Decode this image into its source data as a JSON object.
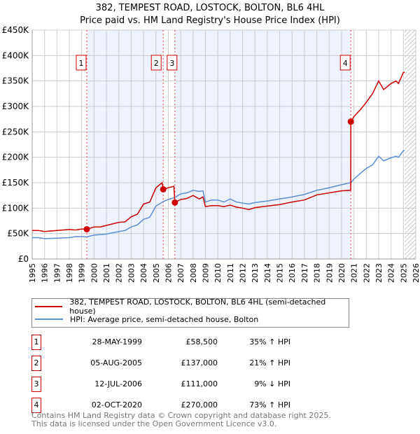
{
  "title": "382, TEMPEST ROAD, LOSTOCK, BOLTON, BL6 4HL",
  "subtitle": "Price paid vs. HM Land Registry's House Price Index (HPI)",
  "legend": {
    "property": "382, TEMPEST ROAD, LOSTOCK, BOLTON, BL6 4HL (semi-detached house)",
    "hpi": "HPI: Average price, semi-detached house, Bolton"
  },
  "sales": [
    {
      "num": "1",
      "date": "28-MAY-1999",
      "price": "£58,500",
      "hpi": "35% ↑ HPI",
      "x": 1999.41,
      "y": 58500
    },
    {
      "num": "2",
      "date": "05-AUG-2005",
      "price": "£137,000",
      "hpi": "21% ↑ HPI",
      "x": 2005.59,
      "y": 137000
    },
    {
      "num": "3",
      "date": "12-JUL-2006",
      "price": "£111,000",
      "hpi": "9% ↓ HPI",
      "x": 2006.53,
      "y": 111000
    },
    {
      "num": "4",
      "date": "02-OCT-2020",
      "price": "£270,000",
      "hpi": "73% ↑ HPI",
      "x": 2020.75,
      "y": 270000
    }
  ],
  "footer": {
    "line1": "Contains HM Land Registry data © Crown copyright and database right 2025.",
    "line2": "This data is licensed under the Open Government Licence v3.0."
  },
  "colors": {
    "property": "#cc0000",
    "hpi": "#5b8fd4",
    "shade": "#eef2fc"
  },
  "chart_data": {
    "type": "line",
    "title": "382, TEMPEST ROAD, LOSTOCK, BOLTON, BL6 4HL",
    "xlim": [
      1995,
      2026
    ],
    "ylim": [
      0,
      450000
    ],
    "xticks": [
      "1995",
      "1996",
      "1997",
      "1998",
      "1999",
      "2000",
      "2001",
      "2002",
      "2003",
      "2004",
      "2005",
      "2006",
      "2007",
      "2008",
      "2009",
      "2010",
      "2011",
      "2012",
      "2013",
      "2014",
      "2015",
      "2016",
      "2017",
      "2018",
      "2019",
      "2020",
      "2021",
      "2022",
      "2023",
      "2024",
      "2025",
      "2026"
    ],
    "yticks": [
      {
        "v": 0,
        "l": "£0"
      },
      {
        "v": 50000,
        "l": "£50K"
      },
      {
        "v": 100000,
        "l": "£100K"
      },
      {
        "v": 150000,
        "l": "£150K"
      },
      {
        "v": 200000,
        "l": "£200K"
      },
      {
        "v": 250000,
        "l": "£250K"
      },
      {
        "v": 300000,
        "l": "£300K"
      },
      {
        "v": 350000,
        "l": "£350K"
      },
      {
        "v": 400000,
        "l": "£400K"
      },
      {
        "v": 450000,
        "l": "£450K"
      }
    ],
    "series": [
      {
        "name": "382, TEMPEST ROAD, LOSTOCK, BOLTON, BL6 4HL (semi-detached house)",
        "x": [
          1995,
          1995.5,
          1996,
          1997,
          1998,
          1998.5,
          1999,
          1999.41,
          2000,
          2000.5,
          2001,
          2002,
          2002.5,
          2003,
          2003.5,
          2004,
          2004.5,
          2005,
          2005.5,
          2005.59,
          2006,
          2006.45,
          2006.53,
          2007,
          2007.5,
          2008,
          2008.5,
          2008.8,
          2009,
          2009.5,
          2010,
          2010.5,
          2011,
          2011.5,
          2012,
          2012.5,
          2013,
          2014,
          2015,
          2016,
          2017,
          2018,
          2019,
          2020,
          2020.74,
          2020.75,
          2021,
          2021.5,
          2022,
          2022.5,
          2023,
          2023.4,
          2024,
          2024.4,
          2024.6,
          2025,
          2025.1
        ],
        "values": [
          56000,
          56000,
          54000,
          56000,
          58000,
          57000,
          59000,
          58500,
          63000,
          63000,
          66000,
          72000,
          73000,
          83000,
          88000,
          108000,
          112000,
          140000,
          150000,
          137000,
          140000,
          143000,
          111000,
          117000,
          119000,
          125000,
          118000,
          122000,
          103000,
          105000,
          105000,
          103000,
          106000,
          102000,
          100000,
          97000,
          101000,
          104000,
          107000,
          112000,
          116000,
          126000,
          130000,
          134000,
          135000,
          270000,
          280000,
          293000,
          308000,
          325000,
          350000,
          333000,
          345000,
          350000,
          345000,
          367000,
          367000
        ]
      },
      {
        "name": "HPI: Average price, semi-detached house, Bolton",
        "x": [
          1995,
          1995.5,
          1996,
          1997,
          1998,
          1998.5,
          1999,
          1999.41,
          2000,
          2001,
          2002,
          2002.5,
          2003,
          2003.5,
          2004,
          2004.5,
          2005,
          2005.59,
          2006,
          2006.53,
          2007,
          2007.5,
          2008,
          2008.5,
          2008.8,
          2009,
          2009.5,
          2010,
          2010.5,
          2011,
          2011.5,
          2012,
          2012.5,
          2013,
          2014,
          2015,
          2016,
          2017,
          2018,
          2019,
          2020,
          2020.75,
          2021,
          2021.5,
          2022,
          2022.5,
          2023,
          2023.4,
          2024,
          2024.4,
          2024.6,
          2025,
          2025.1
        ],
        "values": [
          42000,
          42000,
          40000,
          41000,
          42000,
          44000,
          44000,
          43500,
          47000,
          49000,
          54000,
          56000,
          63000,
          67000,
          78000,
          82000,
          104000,
          113000,
          117000,
          121000,
          128000,
          130000,
          135000,
          133000,
          134000,
          112000,
          116000,
          116000,
          112000,
          118000,
          112000,
          110000,
          108000,
          111000,
          114000,
          118000,
          122000,
          127000,
          135000,
          140000,
          146000,
          150000,
          157000,
          168000,
          178000,
          185000,
          202000,
          193000,
          199000,
          202000,
          200000,
          213000,
          213000
        ]
      }
    ]
  }
}
